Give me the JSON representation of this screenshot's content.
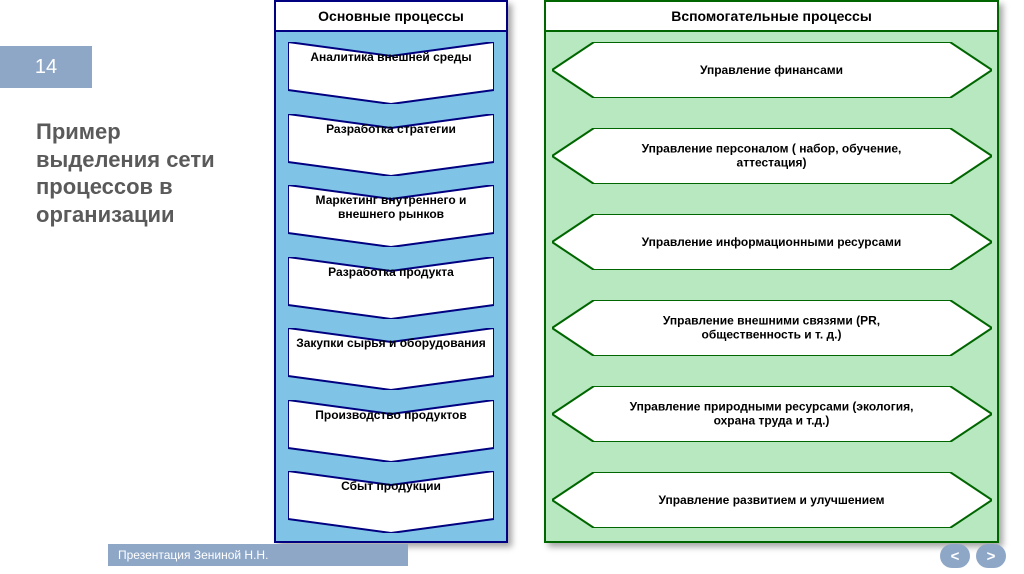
{
  "slide_number": "14",
  "title_text": "Пример выделения сети процессов в организации",
  "footer_text": "Презентация Зениной Н.Н.",
  "colors": {
    "accent_bg": "#8fa7c7",
    "accent_text": "#ffffff",
    "title_color": "#5a5a5a",
    "left_border": "#000080",
    "left_fill": "#7fc4e6",
    "chevron_fill": "#ffffff",
    "chevron_stroke": "#000080",
    "right_border": "#006600",
    "right_fill": "#b8e8c0",
    "arrow_fill": "#ffffff",
    "arrow_stroke": "#006600"
  },
  "left_column": {
    "header": "Основные процессы",
    "items": [
      "Аналитика внешней среды",
      "Разработка стратегии",
      "Маркетинг внутреннего и внешнего рынков",
      "Разработка продукта",
      "Закупки сырья и оборудования",
      "Производство продуктов",
      "Сбыт продукции"
    ]
  },
  "right_column": {
    "header": "Вспомогательные процессы",
    "items": [
      "Управление финансами",
      "Управление персоналом ( набор, обучение, аттестация)",
      "Управление информационными ресурсами",
      "Управление внешними связями (PR, общественность и т. д.)",
      "Управление природными ресурсами (экология, охрана труда и т.д.)",
      "Управление развитием и улучшением"
    ]
  },
  "nav": {
    "prev": "<",
    "next": ">"
  }
}
